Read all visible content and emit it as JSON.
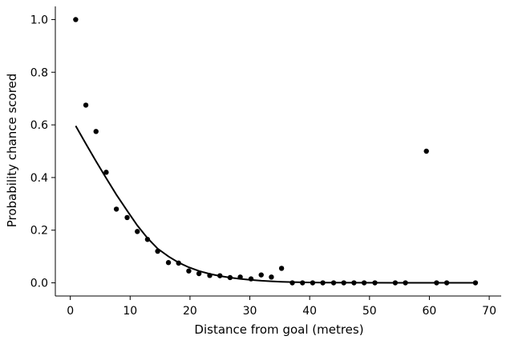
{
  "chart_data": {
    "type": "scatter",
    "title": "",
    "xlabel": "Distance from goal (metres)",
    "ylabel": "Probability chance scored",
    "xlim": [
      -2.5,
      72
    ],
    "ylim": [
      -0.05,
      1.05
    ],
    "xticks": [
      0,
      10,
      20,
      30,
      40,
      50,
      60,
      70
    ],
    "yticks": [
      0.0,
      0.2,
      0.4,
      0.6,
      0.8,
      1.0
    ],
    "xtick_labels": [
      "0",
      "10",
      "20",
      "30",
      "40",
      "50",
      "60",
      "70"
    ],
    "ytick_labels": [
      "0.0",
      "0.2",
      "0.4",
      "0.6",
      "0.8",
      "1.0"
    ],
    "grid": false,
    "colors": {
      "points": "#000000",
      "line": "#000000"
    },
    "series": [
      {
        "kind": "scatter",
        "x": [
          0.9,
          2.6,
          4.3,
          6.0,
          7.7,
          9.5,
          11.2,
          12.9,
          14.6,
          16.4,
          18.1,
          19.8,
          21.5,
          23.3,
          25.0,
          26.7,
          28.4,
          30.2,
          31.9,
          33.6,
          35.3,
          37.1,
          38.8,
          40.5,
          42.2,
          44.0,
          45.7,
          47.4,
          49.1,
          50.9,
          54.3,
          56.0,
          59.5,
          61.2,
          62.9,
          67.7
        ],
        "y": [
          1.0,
          0.675,
          0.575,
          0.42,
          0.28,
          0.248,
          0.195,
          0.165,
          0.12,
          0.077,
          0.075,
          0.045,
          0.035,
          0.028,
          0.027,
          0.02,
          0.022,
          0.015,
          0.03,
          0.022,
          0.055,
          0.0,
          0.0,
          0.0,
          0.0,
          0.0,
          0.0,
          0.0,
          0.0,
          0.0,
          0.0,
          0.0,
          0.5,
          0.0,
          0.0,
          0.0
        ]
      },
      {
        "kind": "line",
        "x": [
          0.9,
          2.6,
          4.3,
          6.0,
          7.7,
          9.5,
          11.2,
          12.9,
          14.6,
          16.4,
          18.1,
          19.8,
          21.5,
          23.3,
          25.0,
          26.7,
          28.4,
          30.2,
          31.9,
          33.6,
          35.3,
          37.1,
          38.8,
          42.2,
          47.4,
          54.3,
          61.2,
          67.7
        ],
        "y": [
          0.596,
          0.528,
          0.462,
          0.398,
          0.335,
          0.274,
          0.218,
          0.17,
          0.13,
          0.1,
          0.077,
          0.059,
          0.045,
          0.034,
          0.026,
          0.02,
          0.015,
          0.011,
          0.008,
          0.006,
          0.004,
          0.003,
          0.002,
          0.001,
          0.0005,
          0.0002,
          0.0001,
          0.0
        ]
      }
    ]
  }
}
